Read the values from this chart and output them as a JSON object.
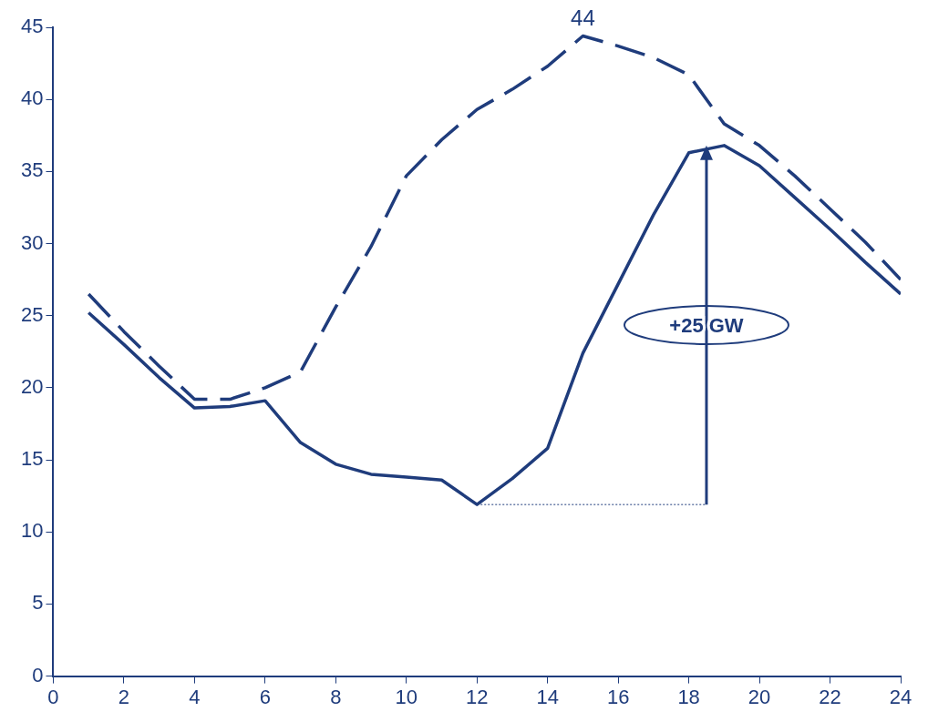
{
  "chart_data": {
    "type": "line",
    "xlim": [
      0,
      24
    ],
    "xticks": [
      0,
      2,
      4,
      6,
      8,
      10,
      12,
      14,
      16,
      18,
      20,
      22,
      24
    ],
    "ylim": [
      0,
      45
    ],
    "yticks": [
      0,
      5,
      10,
      15,
      20,
      25,
      30,
      35,
      40,
      45
    ],
    "grid": false,
    "legend": false,
    "marker": "none",
    "x": [
      1,
      2,
      3,
      4,
      5,
      6,
      7,
      8,
      9,
      10,
      11,
      12,
      13,
      14,
      15,
      16,
      17,
      18,
      19,
      20,
      21,
      22,
      23,
      24
    ],
    "series": [
      {
        "color": "#1f3c7c",
        "line_style": "solid",
        "values": [
          25.2,
          23.0,
          20.7,
          18.6,
          18.7,
          19.1,
          16.2,
          14.7,
          14.0,
          13.8,
          13.6,
          11.9,
          13.7,
          15.8,
          22.4,
          27.2,
          32.0,
          36.3,
          36.8,
          35.4,
          33.2,
          31.0,
          28.7,
          26.5
        ]
      },
      {
        "color": "#1f3c7c",
        "line_style": "dashed",
        "values": [
          26.5,
          23.9,
          21.5,
          19.2,
          19.2,
          20.0,
          21.1,
          25.6,
          29.8,
          34.7,
          37.2,
          39.3,
          40.7,
          42.3,
          44.4,
          43.7,
          42.9,
          41.7,
          38.3,
          36.8,
          34.7,
          32.4,
          30.1,
          27.5
        ],
        "value_labels": [
          null,
          null,
          null,
          null,
          null,
          null,
          null,
          null,
          null,
          null,
          null,
          null,
          null,
          null,
          "44",
          null,
          null,
          null,
          null,
          null,
          null,
          null,
          null,
          null
        ]
      },
      {
        "color": "#1f3c7c",
        "line_style": "dotted",
        "x": [
          12,
          18.5
        ],
        "values": [
          11.9,
          11.9
        ]
      }
    ],
    "annotations": [
      "+25 GW"
    ]
  }
}
